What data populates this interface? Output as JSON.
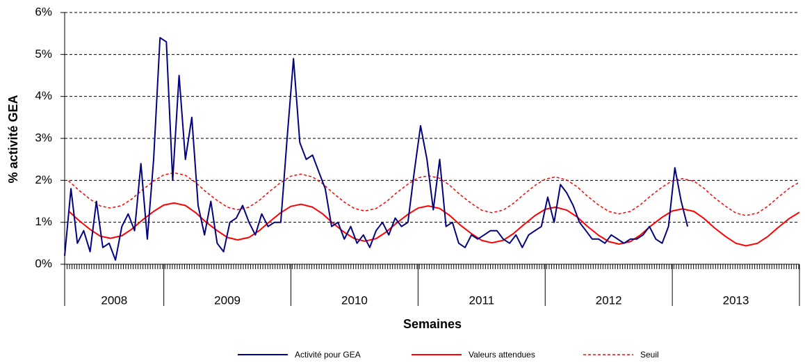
{
  "chart_data": {
    "type": "line",
    "y_label": "% activité GEA",
    "x_label": "Semaines",
    "ylim": [
      0,
      6
    ],
    "yticks": [
      {
        "value": 0,
        "label": "0%"
      },
      {
        "value": 1,
        "label": "1%"
      },
      {
        "value": 2,
        "label": "2%"
      },
      {
        "value": 3,
        "label": "3%"
      },
      {
        "value": 4,
        "label": "4%"
      },
      {
        "value": 5,
        "label": "5%"
      },
      {
        "value": 6,
        "label": "6%"
      }
    ],
    "xlim": [
      2008.22,
      2014
    ],
    "years": [
      2008,
      2009,
      2010,
      2011,
      2012,
      2013
    ],
    "grid": true,
    "legend": "bottom",
    "series": [
      {
        "name": "Activité pour GEA",
        "color": "#000080",
        "dashed": false,
        "x": [
          2008.22,
          2008.27,
          2008.32,
          2008.37,
          2008.42,
          2008.47,
          2008.52,
          2008.57,
          2008.62,
          2008.67,
          2008.72,
          2008.77,
          2008.82,
          2008.87,
          2008.92,
          2008.97,
          2009.02,
          2009.07,
          2009.12,
          2009.17,
          2009.22,
          2009.27,
          2009.32,
          2009.37,
          2009.42,
          2009.47,
          2009.52,
          2009.57,
          2009.62,
          2009.67,
          2009.72,
          2009.77,
          2009.82,
          2009.87,
          2009.92,
          2009.97,
          2010.02,
          2010.07,
          2010.12,
          2010.17,
          2010.22,
          2010.27,
          2010.32,
          2010.37,
          2010.42,
          2010.47,
          2010.52,
          2010.57,
          2010.62,
          2010.67,
          2010.72,
          2010.77,
          2010.82,
          2010.87,
          2010.92,
          2010.97,
          2011.02,
          2011.07,
          2011.12,
          2011.17,
          2011.22,
          2011.27,
          2011.32,
          2011.37,
          2011.42,
          2011.47,
          2011.52,
          2011.57,
          2011.62,
          2011.67,
          2011.72,
          2011.77,
          2011.82,
          2011.87,
          2011.92,
          2011.97,
          2012.02,
          2012.07,
          2012.12,
          2012.17,
          2012.22,
          2012.27,
          2012.32,
          2012.37,
          2012.42,
          2012.47,
          2012.52,
          2012.57,
          2012.62,
          2012.67,
          2012.72,
          2012.77,
          2012.82,
          2012.87,
          2012.92,
          2012.97,
          2013.02,
          2013.07,
          2013.12
        ],
        "values": [
          0.2,
          1.8,
          0.5,
          0.8,
          0.3,
          1.5,
          0.4,
          0.5,
          0.1,
          0.9,
          1.2,
          0.8,
          2.4,
          0.6,
          2.5,
          5.4,
          5.3,
          2.0,
          4.5,
          2.5,
          3.5,
          1.4,
          0.7,
          1.5,
          0.5,
          0.3,
          1.0,
          1.1,
          1.4,
          1.0,
          0.7,
          1.2,
          0.9,
          1.0,
          1.0,
          3.0,
          4.9,
          2.9,
          2.5,
          2.6,
          2.2,
          1.8,
          0.9,
          1.0,
          0.6,
          0.9,
          0.5,
          0.7,
          0.4,
          0.8,
          1.0,
          0.7,
          1.1,
          0.9,
          1.0,
          2.2,
          3.3,
          2.5,
          1.3,
          2.5,
          0.9,
          1.0,
          0.5,
          0.4,
          0.7,
          0.6,
          0.7,
          0.8,
          0.8,
          0.6,
          0.5,
          0.7,
          0.4,
          0.7,
          0.8,
          0.9,
          1.6,
          1.0,
          1.9,
          1.7,
          1.4,
          1.0,
          0.8,
          0.6,
          0.6,
          0.5,
          0.7,
          0.6,
          0.5,
          0.6,
          0.6,
          0.7,
          0.9,
          0.6,
          0.5,
          0.9,
          2.3,
          1.5,
          0.9
        ]
      },
      {
        "name": "Valeurs attendues",
        "color": "#ff0000",
        "dashed": false,
        "x": [
          2008.25,
          2008.33,
          2008.42,
          2008.5,
          2008.58,
          2008.67,
          2008.75,
          2008.83,
          2008.92,
          2009,
          2009.08,
          2009.17,
          2009.25,
          2009.33,
          2009.42,
          2009.5,
          2009.58,
          2009.67,
          2009.75,
          2009.83,
          2009.92,
          2010,
          2010.08,
          2010.17,
          2010.25,
          2010.33,
          2010.42,
          2010.5,
          2010.58,
          2010.67,
          2010.75,
          2010.83,
          2010.92,
          2011,
          2011.08,
          2011.17,
          2011.25,
          2011.33,
          2011.42,
          2011.5,
          2011.58,
          2011.67,
          2011.75,
          2011.83,
          2011.92,
          2012,
          2012.08,
          2012.17,
          2012.25,
          2012.33,
          2012.42,
          2012.5,
          2012.58,
          2012.67,
          2012.75,
          2012.83,
          2012.92,
          2013,
          2013.08,
          2013.17,
          2013.25,
          2013.33,
          2013.42,
          2013.5,
          2013.58,
          2013.67,
          2013.75,
          2013.83,
          2013.92,
          2014
        ],
        "values": [
          1.27,
          1.05,
          0.83,
          0.67,
          0.62,
          0.68,
          0.84,
          1.05,
          1.26,
          1.41,
          1.46,
          1.4,
          1.23,
          1.01,
          0.8,
          0.64,
          0.58,
          0.64,
          0.8,
          1.01,
          1.23,
          1.38,
          1.43,
          1.36,
          1.2,
          0.98,
          0.76,
          0.61,
          0.55,
          0.61,
          0.77,
          0.98,
          1.19,
          1.34,
          1.39,
          1.33,
          1.16,
          0.94,
          0.73,
          0.57,
          0.51,
          0.57,
          0.73,
          0.94,
          1.16,
          1.31,
          1.36,
          1.29,
          1.13,
          0.91,
          0.69,
          0.54,
          0.48,
          0.54,
          0.7,
          0.91,
          1.12,
          1.27,
          1.32,
          1.26,
          1.09,
          0.87,
          0.66,
          0.5,
          0.44,
          0.5,
          0.66,
          0.87,
          1.09,
          1.24
        ]
      },
      {
        "name": "Seuil",
        "color": "#ff0000",
        "dashed": true,
        "x": [
          2008.25,
          2008.33,
          2008.42,
          2008.5,
          2008.58,
          2008.67,
          2008.75,
          2008.83,
          2008.92,
          2009,
          2009.08,
          2009.17,
          2009.25,
          2009.33,
          2009.42,
          2009.5,
          2009.58,
          2009.67,
          2009.75,
          2009.83,
          2009.92,
          2010,
          2010.08,
          2010.17,
          2010.25,
          2010.33,
          2010.42,
          2010.5,
          2010.58,
          2010.67,
          2010.75,
          2010.83,
          2010.92,
          2011,
          2011.08,
          2011.17,
          2011.25,
          2011.33,
          2011.42,
          2011.5,
          2011.58,
          2011.67,
          2011.75,
          2011.83,
          2011.92,
          2012,
          2012.08,
          2012.17,
          2012.25,
          2012.33,
          2012.42,
          2012.5,
          2012.58,
          2012.67,
          2012.75,
          2012.83,
          2012.92,
          2013,
          2013.08,
          2013.17,
          2013.25,
          2013.33,
          2013.42,
          2013.5,
          2013.58,
          2013.67,
          2013.75,
          2013.83,
          2013.92,
          2014
        ],
        "values": [
          1.99,
          1.77,
          1.55,
          1.39,
          1.34,
          1.4,
          1.56,
          1.77,
          1.98,
          2.13,
          2.18,
          2.12,
          1.95,
          1.73,
          1.52,
          1.36,
          1.3,
          1.36,
          1.52,
          1.73,
          1.95,
          2.1,
          2.15,
          2.08,
          1.92,
          1.7,
          1.48,
          1.33,
          1.27,
          1.33,
          1.49,
          1.7,
          1.91,
          2.06,
          2.11,
          2.05,
          1.88,
          1.66,
          1.45,
          1.29,
          1.23,
          1.29,
          1.45,
          1.66,
          1.88,
          2.03,
          2.08,
          2.01,
          1.85,
          1.63,
          1.41,
          1.26,
          1.2,
          1.26,
          1.42,
          1.63,
          1.84,
          1.99,
          2.04,
          1.98,
          1.81,
          1.59,
          1.38,
          1.22,
          1.16,
          1.22,
          1.38,
          1.59,
          1.81,
          1.96
        ]
      }
    ]
  }
}
